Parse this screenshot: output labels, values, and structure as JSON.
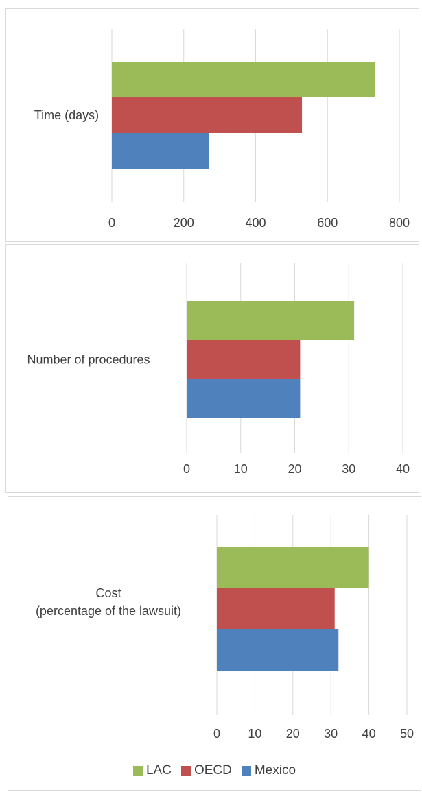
{
  "chart_data": [
    {
      "type": "bar",
      "orientation": "horizontal",
      "categories": [
        "Time (days)"
      ],
      "series": [
        {
          "name": "LAC",
          "values": [
            733
          ],
          "color": "#9bbb59"
        },
        {
          "name": "OECD",
          "values": [
            529
          ],
          "color": "#c0504d"
        },
        {
          "name": "Mexico",
          "values": [
            270
          ],
          "color": "#4f81bd"
        }
      ],
      "xlim": [
        0,
        800
      ],
      "xticks": [
        0,
        200,
        400,
        600,
        800
      ],
      "xticklabels": [
        "0",
        "200",
        "400",
        "600",
        "800"
      ],
      "grid": true
    },
    {
      "type": "bar",
      "orientation": "horizontal",
      "categories": [
        "Number of procedures"
      ],
      "series": [
        {
          "name": "LAC",
          "values": [
            31
          ],
          "color": "#9bbb59"
        },
        {
          "name": "OECD",
          "values": [
            21
          ],
          "color": "#c0504d"
        },
        {
          "name": "Mexico",
          "values": [
            21
          ],
          "color": "#4f81bd"
        }
      ],
      "xlim": [
        0,
        40
      ],
      "xticks": [
        0,
        10,
        20,
        30,
        40
      ],
      "xticklabels": [
        "0",
        "10",
        "20",
        "30",
        "40"
      ],
      "grid": true
    },
    {
      "type": "bar",
      "orientation": "horizontal",
      "categories": [
        "Cost\n(percentage of the lawsuit)"
      ],
      "category_lines": [
        "Cost",
        "(percentage of the lawsuit)"
      ],
      "series": [
        {
          "name": "LAC",
          "values": [
            40
          ],
          "color": "#9bbb59"
        },
        {
          "name": "OECD",
          "values": [
            31
          ],
          "color": "#c0504d"
        },
        {
          "name": "Mexico",
          "values": [
            32
          ],
          "color": "#4f81bd"
        }
      ],
      "xlim": [
        0,
        50
      ],
      "xticks": [
        0,
        10,
        20,
        30,
        40,
        50
      ],
      "xticklabels": [
        "0",
        "10",
        "20",
        "30",
        "40",
        "50"
      ],
      "grid": true,
      "legend": "bottom"
    }
  ],
  "legend": {
    "items": [
      {
        "label": "LAC",
        "color": "#9bbb59"
      },
      {
        "label": "OECD",
        "color": "#c0504d"
      },
      {
        "label": "Mexico",
        "color": "#4f81bd"
      }
    ]
  }
}
